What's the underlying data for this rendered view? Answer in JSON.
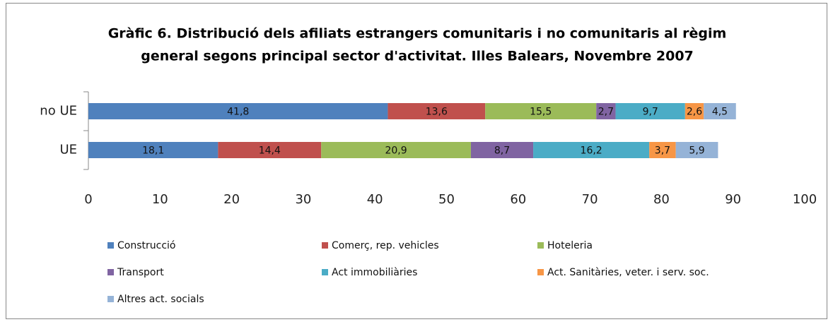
{
  "chart_data": {
    "type": "stacked-barh",
    "title": [
      "Gràfic 6. Distribució dels afiliats estrangers comunitaris i no comunitaris al règim",
      "general segons principal sector d'activitat. Illes Balears, Novembre 2007"
    ],
    "categories": [
      "no UE",
      "UE"
    ],
    "series": [
      {
        "name": "Construcció",
        "color": "#4f81bd",
        "values": [
          41.8,
          18.1
        ],
        "value_labels": [
          "41,8",
          "18,1"
        ]
      },
      {
        "name": "Comerç, rep. vehicles",
        "color": "#c0504d",
        "values": [
          13.6,
          14.4
        ],
        "value_labels": [
          "13,6",
          "14,4"
        ]
      },
      {
        "name": "Hoteleria",
        "color": "#9bbb59",
        "values": [
          15.5,
          20.9
        ],
        "value_labels": [
          "15,5",
          "20,9"
        ]
      },
      {
        "name": "Transport",
        "color": "#8064a2",
        "values": [
          2.7,
          8.7
        ],
        "value_labels": [
          "2,7",
          "8,7"
        ]
      },
      {
        "name": "Act immobiliàries",
        "color": "#4bacc6",
        "values": [
          9.7,
          16.2
        ],
        "value_labels": [
          "9,7",
          "16,2"
        ]
      },
      {
        "name": "Act. Sanitàries, veter. i serv. soc.",
        "color": "#f79646",
        "values": [
          2.6,
          3.7
        ],
        "value_labels": [
          "2,6",
          "3,7"
        ]
      },
      {
        "name": "Altres act. socials",
        "color": "#95b3d7",
        "values": [
          4.5,
          5.9
        ],
        "value_labels": [
          "4,5",
          "5,9"
        ]
      }
    ],
    "xlim": [
      0,
      100
    ],
    "xticks": [
      0,
      10,
      20,
      30,
      40,
      50,
      60,
      70,
      80,
      90,
      100
    ],
    "legend": "bottom"
  }
}
